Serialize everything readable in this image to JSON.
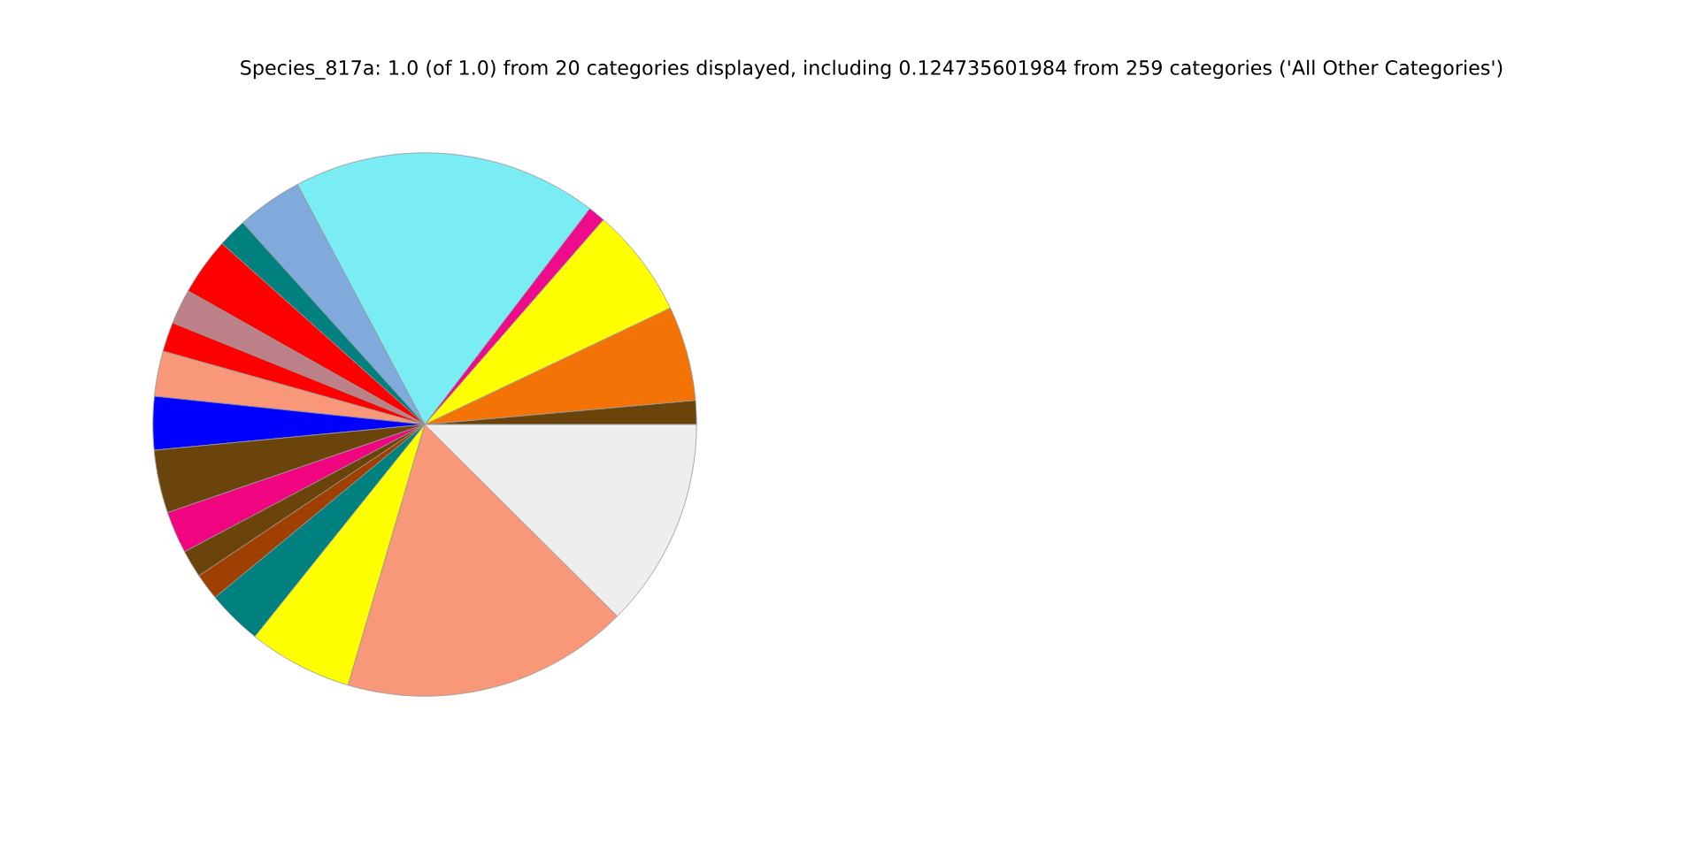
{
  "chart_data": {
    "type": "pie",
    "title": "Species_817a: 1.0 (of 1.0) from 20 categories displayed, including 0.124735601984 from 259 categories ('All Other Categories')",
    "categories": [
      null,
      null,
      null,
      null,
      null,
      null,
      null,
      null,
      null,
      null,
      null,
      null,
      null,
      null,
      null,
      null,
      null,
      null,
      null,
      null
    ],
    "values": [
      1.42,
      5.64,
      6.53,
      1.03,
      18.14,
      3.92,
      1.72,
      3.42,
      2.08,
      1.75,
      2.69,
      3.17,
      3.75,
      2.5,
      1.64,
      1.58,
      3.28,
      6.19,
      17.08,
      12.47
    ],
    "colors": [
      "#6b440c",
      "#f47306",
      "#ffff00",
      "#ee0c8c",
      "#7aecf4",
      "#7faadb",
      "#00807f",
      "#ff0000",
      "#bc8188",
      "#ff0000",
      "#f99878",
      "#0000ff",
      "#6b440c",
      "#f0047f",
      "#6b440c",
      "#a04000",
      "#00807f",
      "#ffff00",
      "#f99878",
      "#eeeeee"
    ]
  }
}
